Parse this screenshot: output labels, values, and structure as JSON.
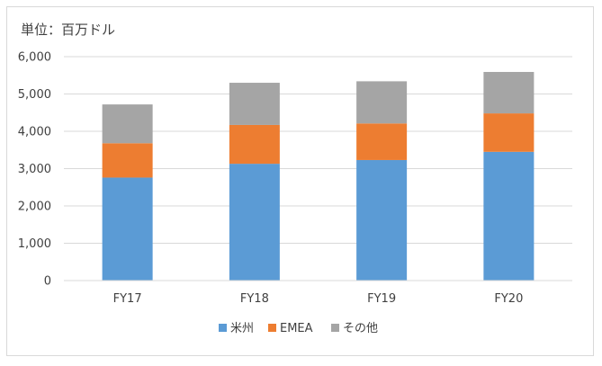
{
  "chart_data": {
    "type": "bar",
    "stacked": true,
    "title": "単位：百万ドル",
    "xlabel": "",
    "ylabel": "",
    "categories": [
      "FY17",
      "FY18",
      "FY19",
      "FY20"
    ],
    "series": [
      {
        "name": "米州",
        "color": "#5b9bd5",
        "values": [
          2760,
          3130,
          3230,
          3450
        ]
      },
      {
        "name": "EMEA",
        "color": "#ed7d31",
        "values": [
          920,
          1040,
          980,
          1030
        ]
      },
      {
        "name": "その他",
        "color": "#a5a5a5",
        "values": [
          1040,
          1130,
          1130,
          1110
        ]
      }
    ],
    "ylim": [
      0,
      6000
    ],
    "yticks": [
      0,
      1000,
      2000,
      3000,
      4000,
      5000,
      6000
    ],
    "ytick_labels": [
      "0",
      "1,000",
      "2,000",
      "3,000",
      "4,000",
      "5,000",
      "6,000"
    ],
    "grid": true,
    "gridline_color": "#d9d9d9",
    "legend_position": "bottom"
  }
}
